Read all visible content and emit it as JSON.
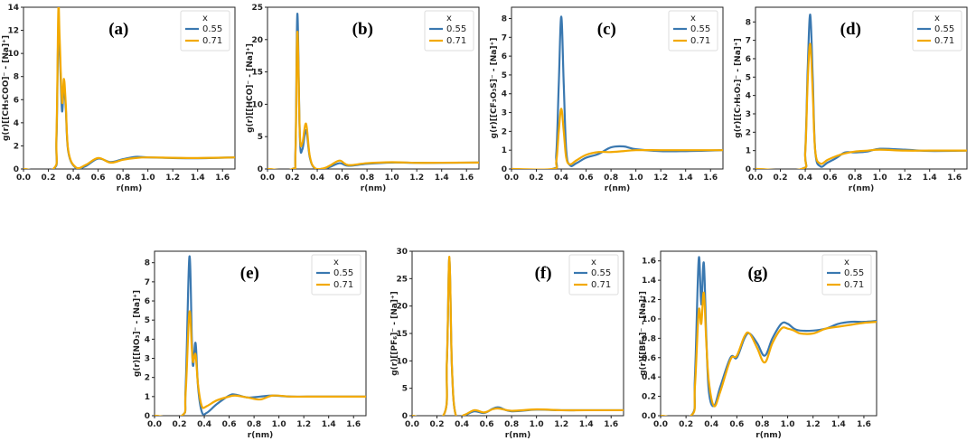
{
  "colors": {
    "s055": "#3a78b0",
    "s071": "#f2a900"
  },
  "legend": {
    "title": "x"
  },
  "xlabel": "r(nm)",
  "x_ticks": [
    "0.0",
    "0.2",
    "0.4",
    "0.6",
    "0.8",
    "1.0",
    "1.2",
    "1.4",
    "1.6"
  ],
  "chart_data": [
    {
      "type": "line",
      "id": "a",
      "panel_label": "(a)",
      "ylabel": "g(r)[[CH₃COO]⁻ - [Na]⁺]",
      "xlim": [
        0,
        1.7
      ],
      "ylim": [
        0,
        14
      ],
      "y_ticks": [
        "0",
        "2",
        "4",
        "6",
        "8",
        "10",
        "12",
        "14"
      ],
      "series": [
        {
          "name": "0.55",
          "x": [
            0,
            0.24,
            0.265,
            0.28,
            0.295,
            0.31,
            0.325,
            0.34,
            0.36,
            0.42,
            0.5,
            0.6,
            0.7,
            0.8,
            0.9,
            1.0,
            1.2,
            1.4,
            1.7
          ],
          "y": [
            0,
            0,
            2.5,
            12.0,
            9.0,
            5.0,
            7.2,
            5.2,
            1.5,
            0.1,
            0.25,
            0.9,
            0.6,
            0.85,
            1.05,
            1.0,
            0.95,
            0.93,
            1.0
          ]
        },
        {
          "name": "0.71",
          "x": [
            0,
            0.24,
            0.265,
            0.28,
            0.29,
            0.31,
            0.325,
            0.34,
            0.36,
            0.42,
            0.5,
            0.6,
            0.7,
            0.8,
            0.9,
            1.0,
            1.2,
            1.4,
            1.7
          ],
          "y": [
            0,
            0,
            3.0,
            13.7,
            11.5,
            5.8,
            7.8,
            5.6,
            1.6,
            0.15,
            0.35,
            0.95,
            0.55,
            0.8,
            0.95,
            1.0,
            0.97,
            0.95,
            1.0
          ]
        }
      ]
    },
    {
      "type": "line",
      "id": "b",
      "panel_label": "(b)",
      "ylabel": "g(r)[[HCO]⁻ - [Na]⁺]",
      "xlim": [
        0,
        1.7
      ],
      "ylim": [
        0,
        25
      ],
      "y_ticks": [
        "0",
        "5",
        "10",
        "15",
        "20",
        "25"
      ],
      "series": [
        {
          "name": "0.55",
          "x": [
            0,
            0.2,
            0.225,
            0.24,
            0.26,
            0.28,
            0.31,
            0.34,
            0.38,
            0.45,
            0.5,
            0.58,
            0.65,
            0.8,
            1.0,
            1.2,
            1.4,
            1.7
          ],
          "y": [
            0,
            0,
            3.0,
            24.0,
            5.0,
            3.0,
            6.0,
            1.8,
            0.1,
            0.05,
            0.3,
            0.9,
            0.5,
            0.8,
            1.0,
            0.95,
            0.95,
            1.0
          ]
        },
        {
          "name": "0.71",
          "x": [
            0,
            0.2,
            0.225,
            0.24,
            0.26,
            0.28,
            0.31,
            0.34,
            0.38,
            0.45,
            0.5,
            0.58,
            0.65,
            0.8,
            1.0,
            1.2,
            1.4,
            1.7
          ],
          "y": [
            0,
            0,
            2.5,
            21.2,
            5.5,
            4.0,
            7.0,
            2.0,
            0.15,
            0.1,
            0.5,
            1.3,
            0.6,
            0.9,
            1.05,
            0.95,
            0.97,
            1.0
          ]
        }
      ]
    },
    {
      "type": "line",
      "id": "c",
      "panel_label": "(c)",
      "ylabel": "g(r)[[CF₃O₃S]⁻ - [Na]⁺]",
      "xlim": [
        0,
        1.7
      ],
      "ylim": [
        0,
        8.6
      ],
      "y_ticks": [
        "0",
        "1",
        "2",
        "3",
        "4",
        "5",
        "6",
        "7",
        "8"
      ],
      "series": [
        {
          "name": "0.55",
          "x": [
            0,
            0.33,
            0.36,
            0.38,
            0.4,
            0.42,
            0.44,
            0.47,
            0.52,
            0.6,
            0.7,
            0.8,
            0.9,
            1.0,
            1.2,
            1.4,
            1.7
          ],
          "y": [
            0,
            0,
            0.8,
            4.5,
            8.1,
            4.5,
            1.0,
            0.2,
            0.3,
            0.6,
            0.8,
            1.15,
            1.2,
            1.05,
            0.95,
            0.95,
            1.0
          ]
        },
        {
          "name": "0.71",
          "x": [
            0,
            0.33,
            0.36,
            0.38,
            0.4,
            0.42,
            0.44,
            0.47,
            0.52,
            0.6,
            0.7,
            0.8,
            0.9,
            1.0,
            1.2,
            1.4,
            1.7
          ],
          "y": [
            0,
            0,
            0.4,
            2.0,
            3.2,
            2.0,
            0.6,
            0.25,
            0.45,
            0.75,
            0.9,
            0.9,
            0.95,
            1.0,
            1.0,
            1.0,
            1.0
          ]
        }
      ]
    },
    {
      "type": "line",
      "id": "d",
      "panel_label": "(d)",
      "ylabel": "g(r)[[C₇H₅O₂]⁻ - [Na]⁺]",
      "xlim": [
        0,
        1.7
      ],
      "ylim": [
        0,
        8.8
      ],
      "y_ticks": [
        "0",
        "1",
        "2",
        "3",
        "4",
        "5",
        "6",
        "7",
        "8"
      ],
      "series": [
        {
          "name": "0.55",
          "x": [
            0,
            0.37,
            0.4,
            0.42,
            0.44,
            0.46,
            0.48,
            0.52,
            0.58,
            0.65,
            0.72,
            0.8,
            0.9,
            1.0,
            1.2,
            1.4,
            1.7
          ],
          "y": [
            0,
            0,
            1.0,
            5.5,
            8.4,
            5.0,
            1.0,
            0.15,
            0.35,
            0.6,
            0.9,
            0.9,
            0.95,
            1.1,
            1.05,
            0.98,
            1.0
          ]
        },
        {
          "name": "0.71",
          "x": [
            0,
            0.37,
            0.4,
            0.42,
            0.44,
            0.46,
            0.48,
            0.52,
            0.58,
            0.65,
            0.72,
            0.8,
            0.9,
            1.0,
            1.2,
            1.4,
            1.7
          ],
          "y": [
            0,
            0,
            0.9,
            4.8,
            6.8,
            4.2,
            1.0,
            0.3,
            0.5,
            0.7,
            0.85,
            0.95,
            1.0,
            1.05,
            1.0,
            1.0,
            1.0
          ]
        }
      ]
    },
    {
      "type": "line",
      "id": "e",
      "panel_label": "(e)",
      "ylabel": "g(r)[[NO₃]⁻ - [Na]⁺]",
      "xlim": [
        0,
        1.7
      ],
      "ylim": [
        0,
        8.6
      ],
      "y_ticks": [
        "0",
        "1",
        "2",
        "3",
        "4",
        "5",
        "6",
        "7",
        "8"
      ],
      "series": [
        {
          "name": "0.55",
          "x": [
            0,
            0.22,
            0.25,
            0.28,
            0.3,
            0.31,
            0.33,
            0.35,
            0.38,
            0.42,
            0.5,
            0.6,
            0.65,
            0.75,
            0.85,
            0.95,
            1.1,
            1.3,
            1.5,
            1.7
          ],
          "y": [
            0,
            0,
            1.5,
            8.3,
            4.0,
            2.6,
            3.8,
            1.5,
            0.2,
            0.15,
            0.6,
            1.05,
            1.1,
            0.95,
            1.0,
            1.05,
            1.0,
            1.0,
            1.0,
            1.0
          ]
        },
        {
          "name": "0.71",
          "x": [
            0,
            0.22,
            0.25,
            0.28,
            0.3,
            0.31,
            0.33,
            0.35,
            0.38,
            0.42,
            0.5,
            0.6,
            0.65,
            0.75,
            0.85,
            0.95,
            1.1,
            1.3,
            1.5,
            1.7
          ],
          "y": [
            0,
            0,
            1.2,
            5.4,
            3.5,
            2.8,
            3.2,
            1.6,
            0.5,
            0.5,
            0.8,
            1.0,
            1.05,
            0.95,
            0.85,
            1.05,
            1.0,
            1.0,
            1.0,
            1.0
          ]
        }
      ]
    },
    {
      "type": "line",
      "id": "f",
      "panel_label": "(f)",
      "ylabel": "g(r)[[PF₆]⁻ - [Na]⁺]",
      "xlim": [
        0,
        1.7
      ],
      "ylim": [
        0,
        30
      ],
      "y_ticks": [
        "0",
        "5",
        "10",
        "15",
        "20",
        "25",
        "30"
      ],
      "series": [
        {
          "name": "0.55",
          "x": [
            0,
            0.25,
            0.28,
            0.3,
            0.32,
            0.35,
            0.42,
            0.5,
            0.58,
            0.65,
            0.7,
            0.8,
            1.0,
            1.2,
            1.4,
            1.7
          ],
          "y": [
            0,
            0,
            10.0,
            28.8,
            9.0,
            0.2,
            0.1,
            0.8,
            0.5,
            1.3,
            1.5,
            0.8,
            1.1,
            1.0,
            1.0,
            1.0
          ]
        },
        {
          "name": "0.71",
          "x": [
            0,
            0.25,
            0.28,
            0.3,
            0.32,
            0.35,
            0.42,
            0.5,
            0.58,
            0.65,
            0.7,
            0.8,
            1.0,
            1.2,
            1.4,
            1.7
          ],
          "y": [
            0,
            0,
            10.0,
            29.0,
            9.0,
            0.2,
            0.15,
            1.0,
            0.6,
            1.2,
            1.3,
            0.9,
            1.15,
            1.0,
            1.0,
            1.0
          ]
        }
      ]
    },
    {
      "type": "line",
      "id": "g",
      "panel_label": "(g)",
      "ylabel": "g(r)[[BF₄]⁻ - [Na]⁺]",
      "xlim": [
        0,
        1.7
      ],
      "ylim": [
        0,
        1.7
      ],
      "y_ticks": [
        "0.0",
        "0.2",
        "0.4",
        "0.6",
        "0.8",
        "1.0",
        "1.2",
        "1.4",
        "1.6"
      ],
      "series": [
        {
          "name": "0.55",
          "x": [
            0,
            0.24,
            0.27,
            0.3,
            0.32,
            0.34,
            0.36,
            0.38,
            0.42,
            0.47,
            0.55,
            0.6,
            0.66,
            0.7,
            0.76,
            0.82,
            0.88,
            0.95,
            1.0,
            1.05,
            1.1,
            1.2,
            1.3,
            1.4,
            1.5,
            1.6,
            1.7
          ],
          "y": [
            0,
            0,
            0.4,
            1.62,
            1.15,
            1.58,
            0.8,
            0.25,
            0.1,
            0.3,
            0.6,
            0.6,
            0.8,
            0.85,
            0.75,
            0.62,
            0.8,
            0.95,
            0.95,
            0.9,
            0.88,
            0.88,
            0.9,
            0.95,
            0.97,
            0.97,
            0.98
          ]
        },
        {
          "name": "0.71",
          "x": [
            0,
            0.24,
            0.27,
            0.3,
            0.32,
            0.34,
            0.36,
            0.38,
            0.42,
            0.47,
            0.55,
            0.6,
            0.66,
            0.7,
            0.76,
            0.82,
            0.88,
            0.95,
            1.0,
            1.05,
            1.1,
            1.2,
            1.3,
            1.4,
            1.5,
            1.6,
            1.7
          ],
          "y": [
            0,
            0,
            0.3,
            1.08,
            0.95,
            1.27,
            0.75,
            0.35,
            0.1,
            0.25,
            0.58,
            0.62,
            0.82,
            0.85,
            0.7,
            0.55,
            0.75,
            0.9,
            0.9,
            0.88,
            0.85,
            0.85,
            0.9,
            0.92,
            0.94,
            0.96,
            0.97
          ]
        }
      ]
    }
  ]
}
